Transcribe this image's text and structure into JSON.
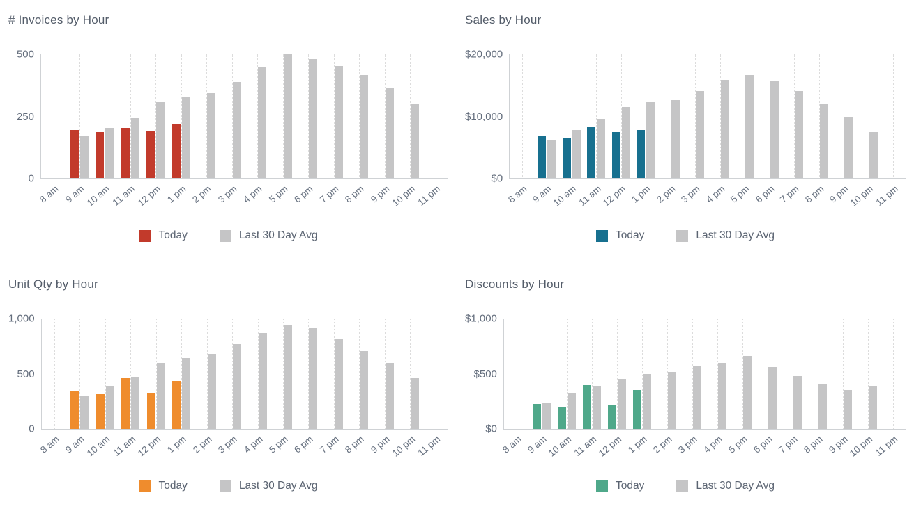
{
  "legend_labels": {
    "today": "Today",
    "avg": "Last 30 Day Avg"
  },
  "chart_data": [
    {
      "type": "bar",
      "title": "# Invoices by Hour",
      "xlabel": "",
      "ylabel": "",
      "y_ticks": [
        "500",
        "250",
        "0"
      ],
      "ylim": [
        0,
        500
      ],
      "grid": "vertical-dotted",
      "legend_position": "bottom",
      "categories": [
        "8 am",
        "9 am",
        "10 am",
        "11 am",
        "12 pm",
        "1 pm",
        "2 pm",
        "3 pm",
        "4 pm",
        "5 pm",
        "6 pm",
        "7 pm",
        "8 pm",
        "9 pm",
        "10 pm",
        "11 pm"
      ],
      "series": [
        {
          "name": "Today",
          "color": "#c23a2b",
          "values": [
            null,
            195,
            185,
            205,
            190,
            220,
            null,
            null,
            null,
            null,
            null,
            null,
            null,
            null,
            null,
            null
          ]
        },
        {
          "name": "Last 30 Day Avg",
          "color": "#c5c5c6",
          "values": [
            null,
            170,
            205,
            245,
            305,
            330,
            345,
            390,
            450,
            500,
            480,
            455,
            415,
            365,
            300,
            null
          ]
        }
      ]
    },
    {
      "type": "bar",
      "title": "Sales by Hour",
      "xlabel": "",
      "ylabel": "",
      "y_ticks": [
        "$20,000",
        "$10,000",
        "$0"
      ],
      "ylim": [
        0,
        20000
      ],
      "grid": "vertical-dotted",
      "legend_position": "bottom",
      "categories": [
        "8 am",
        "9 am",
        "10 am",
        "11 am",
        "12 pm",
        "1 pm",
        "2 pm",
        "3 pm",
        "4 pm",
        "5 pm",
        "6 pm",
        "7 pm",
        "8 pm",
        "9 pm",
        "10 pm",
        "11 pm"
      ],
      "series": [
        {
          "name": "Today",
          "color": "#17708f",
          "values": [
            null,
            6800,
            6500,
            8300,
            7400,
            7700,
            null,
            null,
            null,
            null,
            null,
            null,
            null,
            null,
            null,
            null
          ]
        },
        {
          "name": "Last 30 Day Avg",
          "color": "#c5c5c6",
          "values": [
            null,
            6200,
            7700,
            9500,
            11600,
            12300,
            12700,
            14200,
            15800,
            16700,
            15700,
            14100,
            12000,
            9900,
            7400,
            null
          ]
        }
      ]
    },
    {
      "type": "bar",
      "title": "Unit Qty by Hour",
      "xlabel": "",
      "ylabel": "",
      "y_ticks": [
        "1,000",
        "500",
        "0"
      ],
      "ylim": [
        0,
        1000
      ],
      "grid": "vertical-dotted",
      "legend_position": "bottom",
      "categories": [
        "8 am",
        "9 am",
        "10 am",
        "11 am",
        "12 pm",
        "1 pm",
        "2 pm",
        "3 pm",
        "4 pm",
        "5 pm",
        "6 pm",
        "7 pm",
        "8 pm",
        "9 pm",
        "10 pm",
        "11 pm"
      ],
      "series": [
        {
          "name": "Today",
          "color": "#ef8c2d",
          "values": [
            null,
            340,
            315,
            465,
            330,
            435,
            null,
            null,
            null,
            null,
            null,
            null,
            null,
            null,
            null,
            null
          ]
        },
        {
          "name": "Last 30 Day Avg",
          "color": "#c5c5c6",
          "values": [
            null,
            295,
            385,
            475,
            600,
            645,
            685,
            775,
            870,
            945,
            910,
            815,
            710,
            600,
            460,
            null
          ]
        }
      ]
    },
    {
      "type": "bar",
      "title": "Discounts by Hour",
      "xlabel": "",
      "ylabel": "",
      "y_ticks": [
        "$1,000",
        "$500",
        "$0"
      ],
      "ylim": [
        0,
        1000
      ],
      "grid": "vertical-dotted",
      "legend_position": "bottom",
      "categories": [
        "8 am",
        "9 am",
        "10 am",
        "11 am",
        "12 pm",
        "1 pm",
        "2 pm",
        "3 pm",
        "4 pm",
        "5 pm",
        "6 pm",
        "7 pm",
        "8 pm",
        "9 pm",
        "10 pm",
        "11 pm"
      ],
      "series": [
        {
          "name": "Today",
          "color": "#4fa88a",
          "values": [
            null,
            225,
            195,
            400,
            215,
            355,
            null,
            null,
            null,
            null,
            null,
            null,
            null,
            null,
            null,
            null
          ]
        },
        {
          "name": "Last 30 Day Avg",
          "color": "#c5c5c6",
          "values": [
            null,
            235,
            330,
            385,
            455,
            495,
            520,
            570,
            595,
            660,
            560,
            480,
            405,
            355,
            390,
            null
          ]
        }
      ]
    }
  ]
}
